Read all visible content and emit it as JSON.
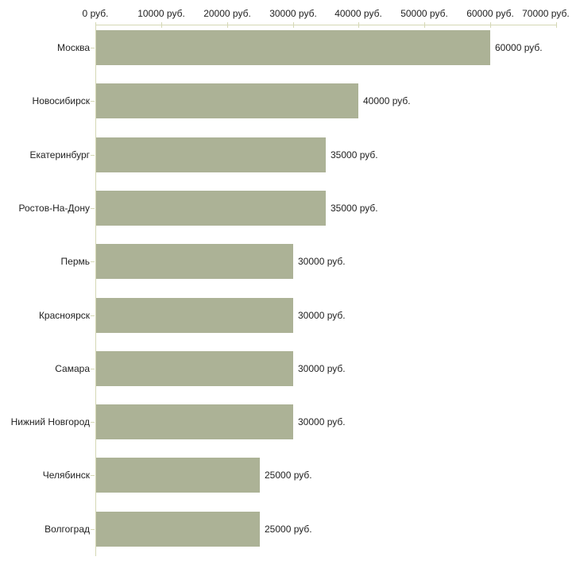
{
  "chart_data": {
    "type": "bar",
    "orientation": "horizontal",
    "title": "",
    "xlabel": "",
    "ylabel": "",
    "unit": "руб.",
    "xlim": [
      0,
      70000
    ],
    "x_tick_step": 10000,
    "x_tick_labels": [
      "0 руб.",
      "10000 руб.",
      "20000 руб.",
      "30000 руб.",
      "40000 руб.",
      "50000 руб.",
      "60000 руб.",
      "70000 руб."
    ],
    "categories": [
      "Москва",
      "Новосибирск",
      "Екатеринбург",
      "Ростов-На-Дону",
      "Пермь",
      "Красноярск",
      "Самара",
      "Нижний Новгород",
      "Челябинск",
      "Волгоград"
    ],
    "values": [
      60000,
      40000,
      35000,
      35000,
      30000,
      30000,
      30000,
      30000,
      25000,
      25000
    ],
    "value_labels": [
      "60000 руб.",
      "40000 руб.",
      "35000 руб.",
      "35000 руб.",
      "30000 руб.",
      "30000 руб.",
      "30000 руб.",
      "30000 руб.",
      "25000 руб.",
      "25000 руб."
    ],
    "grid": false,
    "legend": false,
    "axis_position": "top",
    "colors": {
      "bar": "#acb296",
      "axis": "#d5d8b5",
      "text": "#1f1f1f",
      "background": "#ffffff"
    }
  }
}
